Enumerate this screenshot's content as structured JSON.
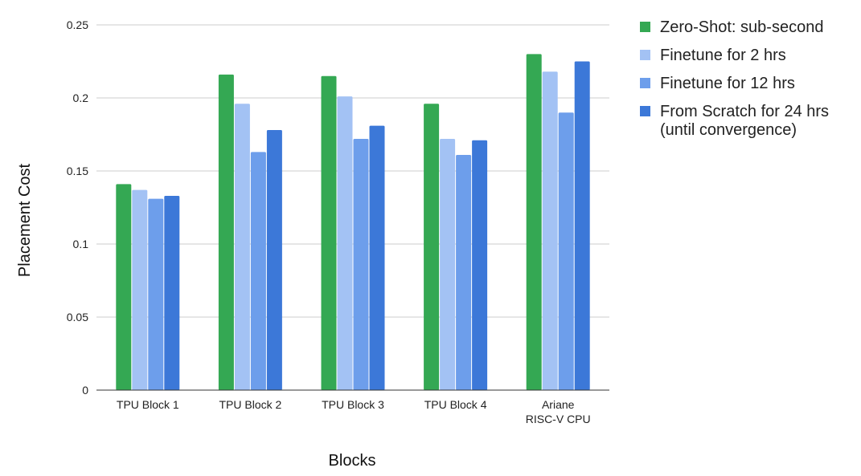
{
  "chart_data": {
    "type": "bar",
    "title": "",
    "xlabel": "Blocks",
    "ylabel": "Placement Cost",
    "categories": [
      [
        "TPU Block 1"
      ],
      [
        "TPU Block 2"
      ],
      [
        "TPU Block 3"
      ],
      [
        "TPU Block 4"
      ],
      [
        "Ariane",
        "RISC-V CPU"
      ]
    ],
    "series": [
      {
        "name": [
          "Zero-Shot: sub-second"
        ],
        "color": "#34a853",
        "values": [
          0.141,
          0.216,
          0.215,
          0.196,
          0.23
        ]
      },
      {
        "name": [
          "Finetune for 2 hrs"
        ],
        "color": "#a3c2f4",
        "values": [
          0.137,
          0.196,
          0.201,
          0.172,
          0.218
        ]
      },
      {
        "name": [
          "Finetune for 12 hrs"
        ],
        "color": "#6d9eeb",
        "values": [
          0.131,
          0.163,
          0.172,
          0.161,
          0.19
        ]
      },
      {
        "name": [
          "From Scratch for 24 hrs",
          "(until convergence)"
        ],
        "color": "#3c78d8",
        "values": [
          0.133,
          0.178,
          0.181,
          0.171,
          0.225
        ]
      }
    ],
    "ylim": [
      0,
      0.25
    ],
    "yticks": [
      0,
      0.05,
      0.1,
      0.15,
      0.2,
      0.25
    ],
    "ytick_labels": [
      "0",
      "0.05",
      "0.1",
      "0.15",
      "0.2",
      "0.25"
    ],
    "grid": true,
    "legend_position": "right"
  }
}
